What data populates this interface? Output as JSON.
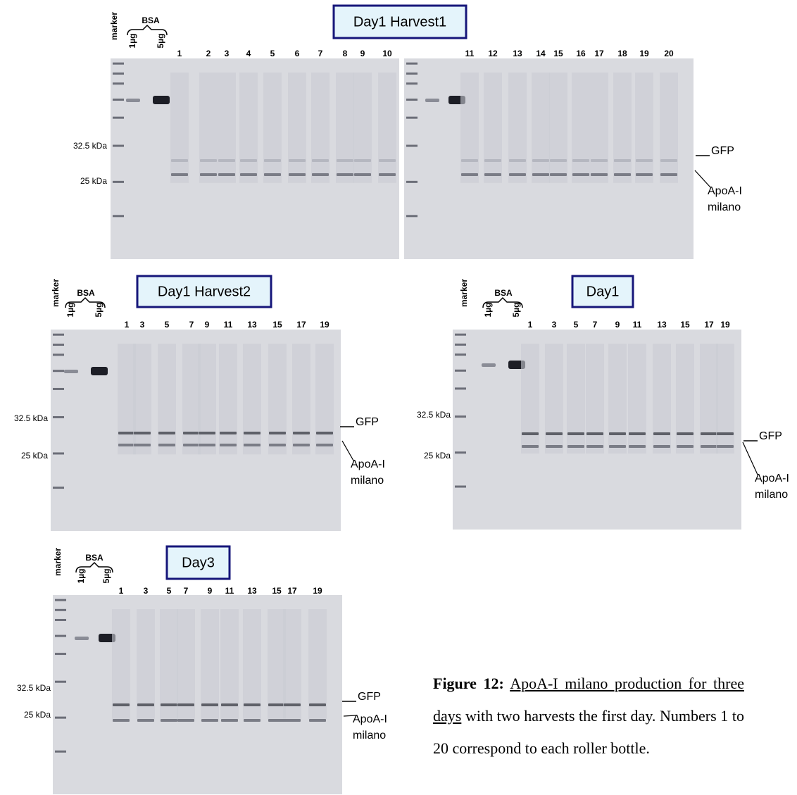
{
  "panels": [
    {
      "title": "Day1 Harvest1",
      "marker": "marker",
      "bsa": "BSA",
      "bsa_lanes": [
        "1µg",
        "5µg"
      ],
      "lanes": [
        "1",
        "2",
        "3",
        "4",
        "5",
        "6",
        "7",
        "8",
        "9",
        "10",
        "11",
        "12",
        "13",
        "14",
        "15",
        "16",
        "17",
        "18",
        "19",
        "20"
      ],
      "kda": [
        "32.5 kDa",
        "25 kDa"
      ],
      "gfp": "GFP",
      "apoa": [
        "ApoA-I",
        "milano"
      ]
    },
    {
      "title": "Day1 Harvest2",
      "marker": "marker",
      "bsa": "BSA",
      "bsa_lanes": [
        "1µg",
        "5µg"
      ],
      "lanes": [
        "1",
        "3",
        "5",
        "7",
        "9",
        "11",
        "13",
        "15",
        "17",
        "19"
      ],
      "kda": [
        "32.5 kDa",
        "25 kDa"
      ],
      "gfp": "GFP",
      "apoa": [
        "ApoA-I",
        "milano"
      ]
    },
    {
      "title": "Day1",
      "marker": "marker",
      "bsa": "BSA",
      "bsa_lanes": [
        "1µg",
        "5µg"
      ],
      "lanes": [
        "1",
        "3",
        "5",
        "7",
        "9",
        "11",
        "13",
        "15",
        "17",
        "19"
      ],
      "kda": [
        "32.5 kDa",
        "25 kDa"
      ],
      "gfp": "GFP",
      "apoa": [
        "ApoA-I",
        "milano"
      ]
    },
    {
      "title": "Day3",
      "marker": "marker",
      "bsa": "BSA",
      "bsa_lanes": [
        "1µg",
        "5µg"
      ],
      "lanes": [
        "1",
        "3",
        "5",
        "7",
        "9",
        "11",
        "13",
        "15",
        "17",
        "19"
      ],
      "kda": [
        "32.5 kDa",
        "25 kDa"
      ],
      "gfp": "GFP",
      "apoa": [
        "ApoA-I",
        "milano"
      ]
    }
  ],
  "caption": {
    "label": "Figure 12:",
    "underlined": "ApoA-I milano production for three days",
    "rest": "with two harvests the first day. Numbers 1 to 20 correspond to each roller bottle."
  }
}
